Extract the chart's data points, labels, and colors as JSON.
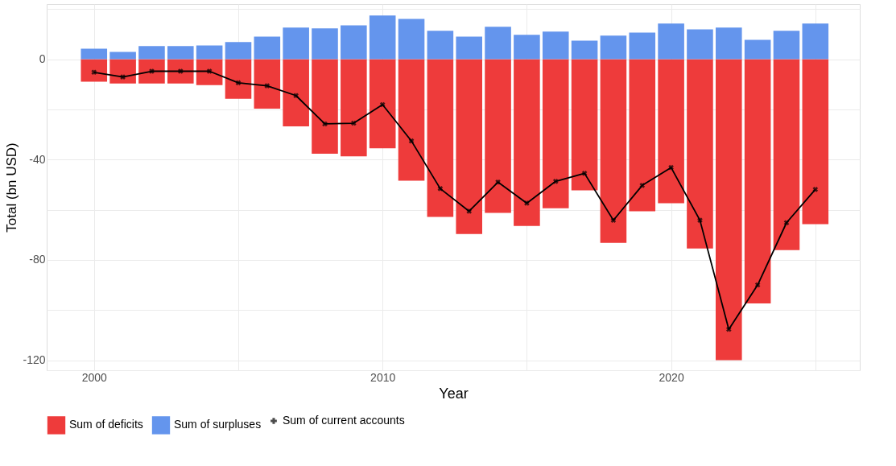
{
  "chart_data": {
    "type": "bar",
    "xlabel": "Year",
    "ylabel": "Total (bn USD)",
    "x": [
      2000,
      2001,
      2002,
      2003,
      2004,
      2005,
      2006,
      2007,
      2008,
      2009,
      2010,
      2011,
      2012,
      2013,
      2014,
      2015,
      2016,
      2017,
      2018,
      2019,
      2020,
      2021,
      2022,
      2023,
      2024,
      2025
    ],
    "series": [
      {
        "name": "Sum of deficits",
        "color": "#ee3b3b",
        "values": [
          -9.0,
          -9.7,
          -9.7,
          -9.7,
          -10.3,
          -15.8,
          -19.7,
          -26.8,
          -37.7,
          -38.7,
          -35.5,
          -48.4,
          -62.9,
          -69.7,
          -61.3,
          -66.5,
          -59.4,
          -52.3,
          -73.2,
          -60.6,
          -57.4,
          -75.5,
          -120.0,
          -97.4,
          -76.1,
          -65.8
        ]
      },
      {
        "name": "Sum of surpluses",
        "color": "#6495ed",
        "values": [
          4.2,
          2.9,
          5.2,
          5.2,
          5.5,
          6.8,
          9.0,
          12.6,
          12.3,
          13.5,
          17.4,
          16.1,
          11.3,
          9.0,
          12.9,
          9.7,
          11.0,
          7.4,
          9.4,
          10.6,
          14.2,
          11.9,
          12.6,
          7.7,
          11.3,
          14.2
        ]
      },
      {
        "name": "Sum of current accounts",
        "type": "line",
        "color": "#000000",
        "marker": "cross",
        "line_style": "solid",
        "values": [
          -5.2,
          -7.1,
          -4.8,
          -4.8,
          -4.8,
          -9.4,
          -10.6,
          -14.5,
          -25.8,
          -25.5,
          -18.1,
          -32.6,
          -51.6,
          -60.6,
          -49.0,
          -57.4,
          -48.7,
          -45.5,
          -64.2,
          -50.3,
          -43.2,
          -64.2,
          -107.7,
          -90.0,
          -65.2,
          -51.9
        ]
      }
    ],
    "xlim": [
      1998.5,
      2026.4
    ],
    "xticks": [
      2000,
      {
        "value": 2005,
        "label": null
      },
      2010,
      {
        "value": 2015,
        "label": null
      },
      2020,
      {
        "value": 2025,
        "label": null
      }
    ],
    "ylim": [
      -124,
      22
    ],
    "yticks": [
      -120,
      {
        "value": -100,
        "label": null
      },
      -80,
      {
        "value": -60,
        "label": null
      },
      -40,
      {
        "value": -20,
        "label": null
      },
      0,
      {
        "value": 20,
        "label": null
      }
    ],
    "grid": true,
    "legend": "bottom",
    "stacked": true
  }
}
